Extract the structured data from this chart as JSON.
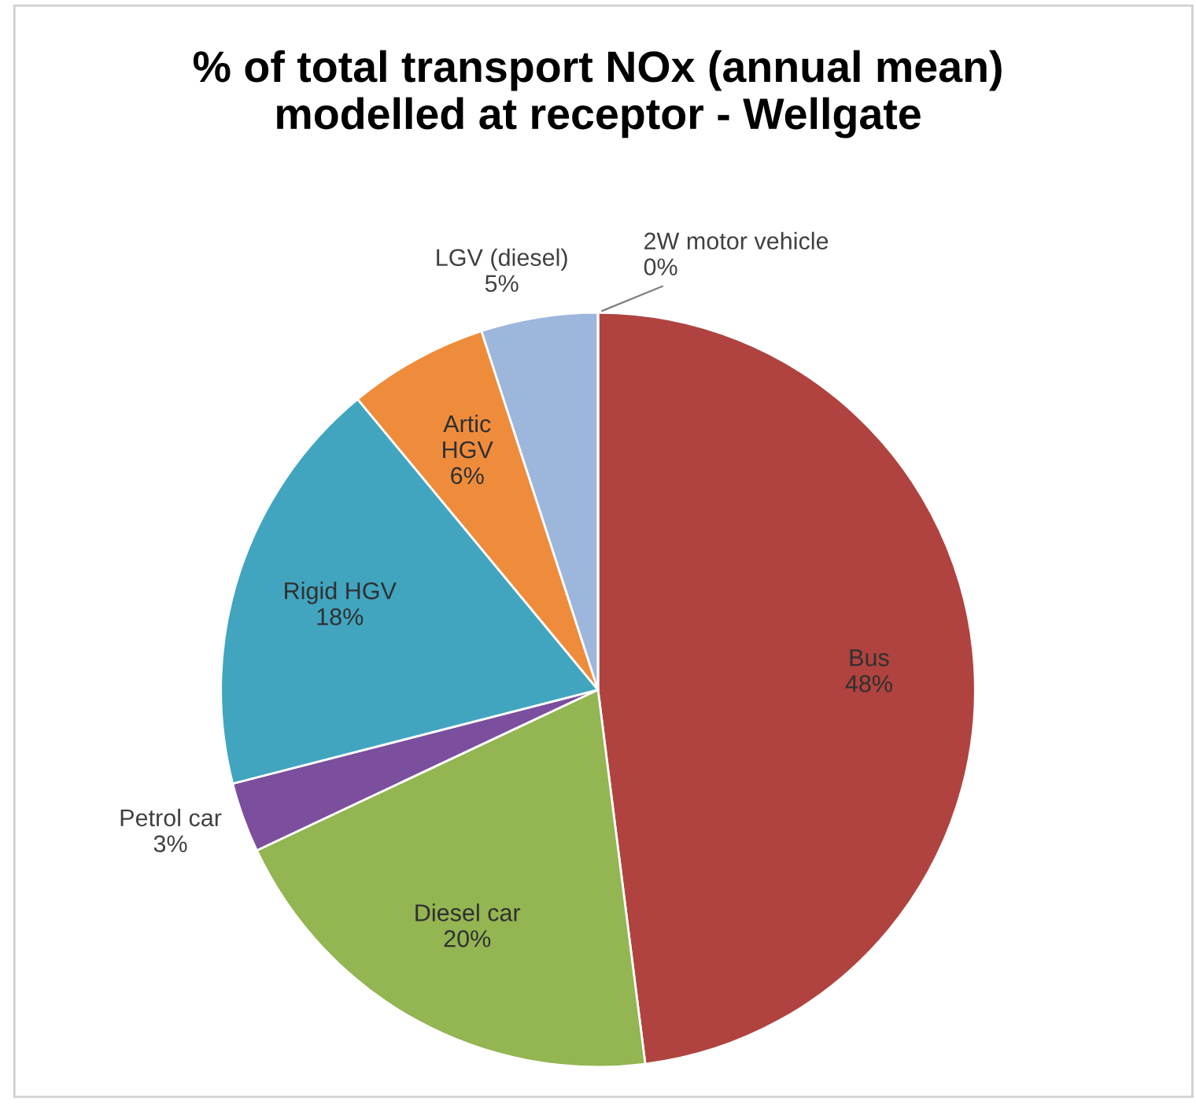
{
  "chart_data": {
    "type": "pie",
    "title": "% of total transport NOx (annual mean)\nmodelled at receptor - Wellgate",
    "categories": [
      "Bus",
      "Diesel car",
      "Petrol car",
      "Rigid HGV",
      "Artic HGV",
      "LGV (diesel)",
      "2W motor vehicle"
    ],
    "values": [
      48,
      20,
      3,
      18,
      6,
      5,
      0
    ],
    "value_labels": [
      "48%",
      "20%",
      "3%",
      "18%",
      "6%",
      "5%",
      "0%"
    ],
    "colors": [
      "#b0433f",
      "#93b552",
      "#7b4f9d",
      "#41a5c0",
      "#ef8c3c",
      "#9db6dc",
      "#c0504d"
    ],
    "legend": false
  }
}
